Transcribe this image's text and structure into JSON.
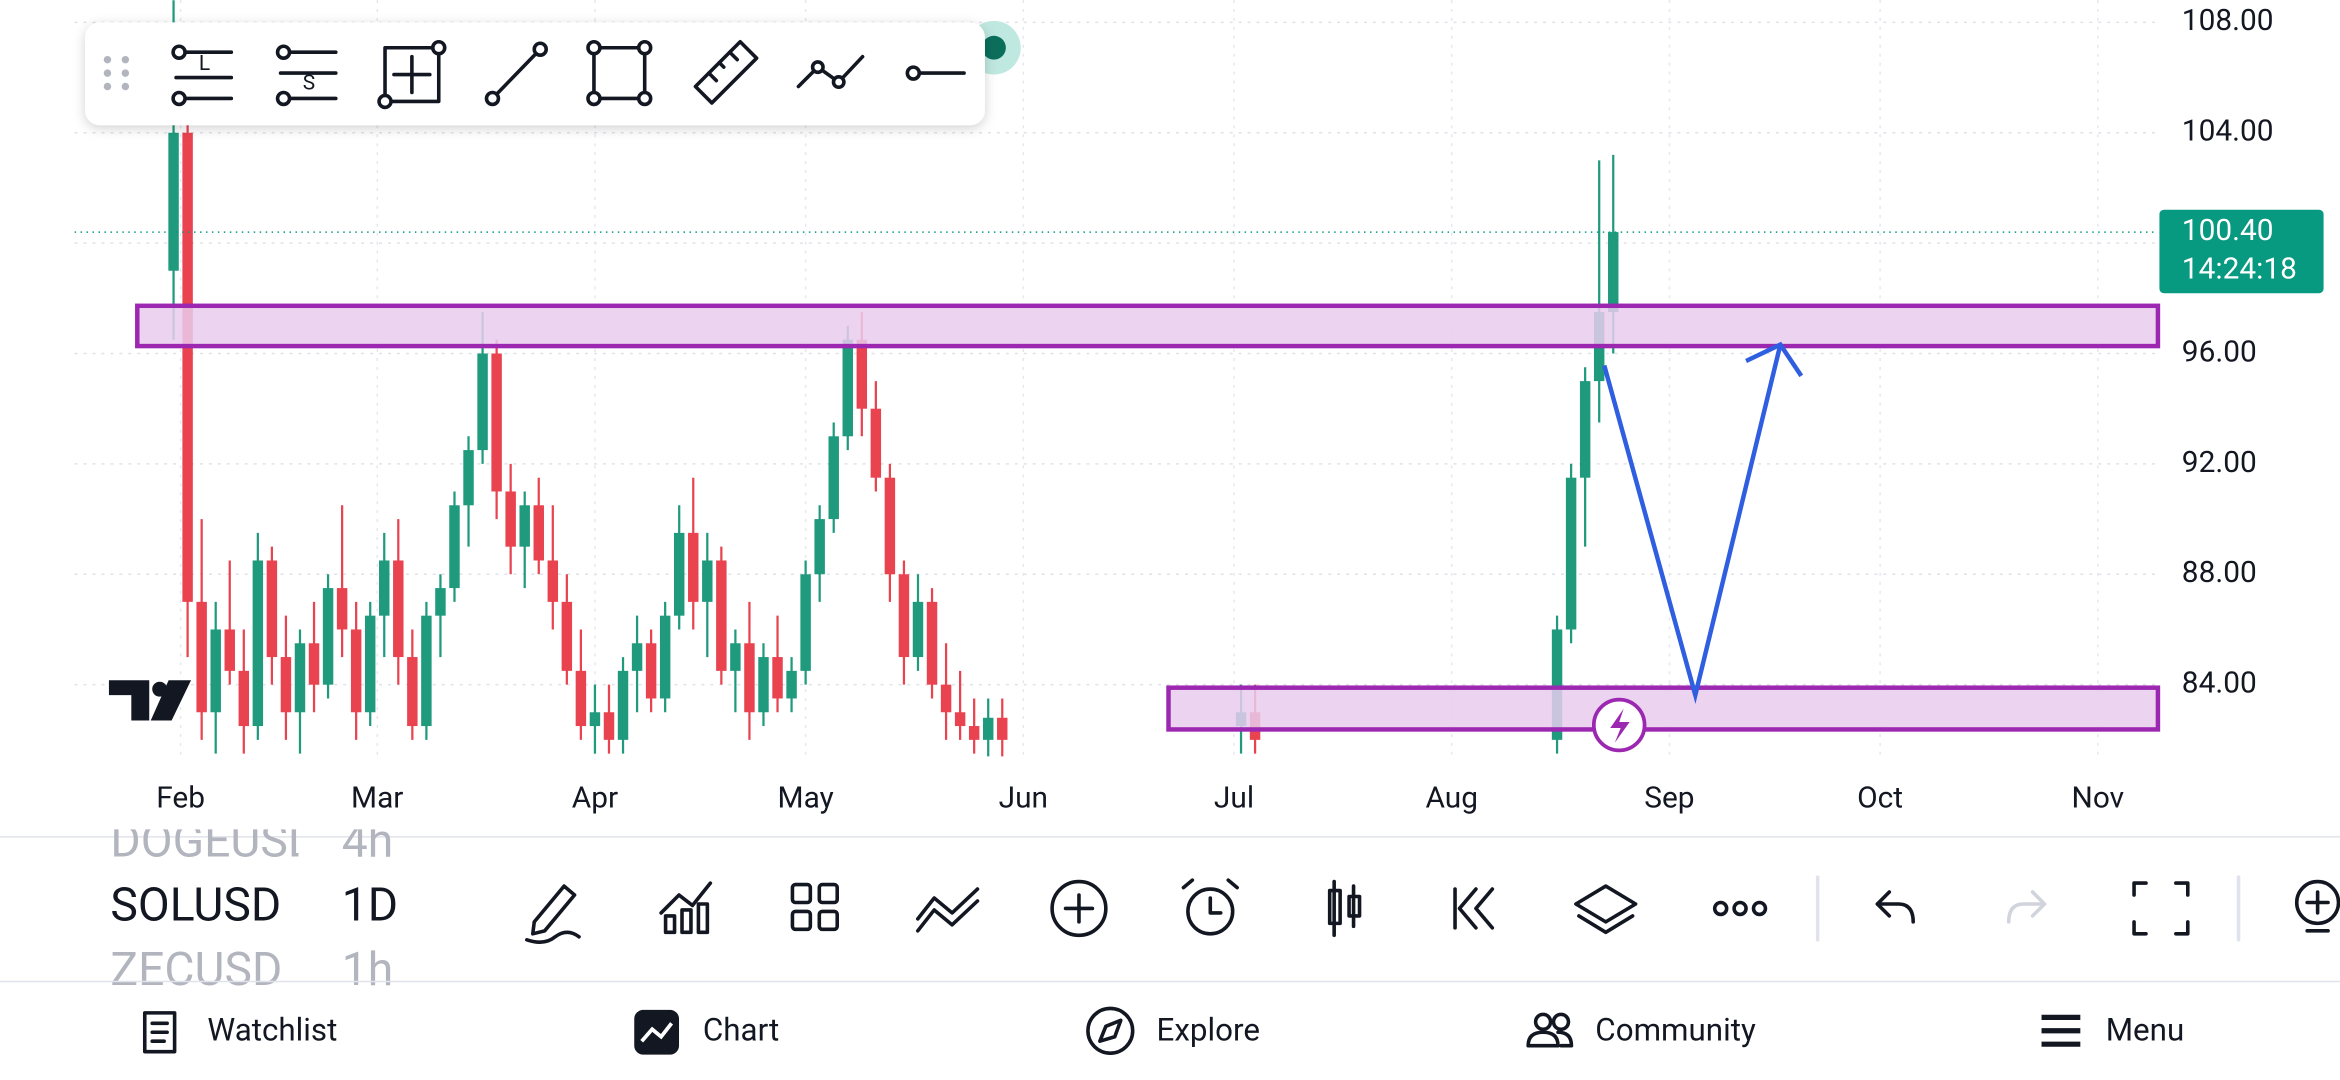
{
  "drawing_tool_labels": [
    "L",
    "S"
  ],
  "chart_data": {
    "type": "candlestick",
    "xticks": [
      {
        "value": 32,
        "label": "Feb"
      },
      {
        "value": 60,
        "label": "Mar"
      },
      {
        "value": 91,
        "label": "Apr"
      },
      {
        "value": 121,
        "label": "May"
      },
      {
        "value": 152,
        "label": "Jun"
      },
      {
        "value": 182,
        "label": "Jul"
      },
      {
        "value": 213,
        "label": "Aug"
      },
      {
        "value": 244,
        "label": "Sep"
      },
      {
        "value": 274,
        "label": "Oct"
      },
      {
        "value": 305,
        "label": "Nov"
      }
    ],
    "xlim": [
      16.91,
      313.56
    ],
    "ylim": [
      81.35,
      108.81
    ],
    "yticks": [
      {
        "value": 84,
        "label": "84.00"
      },
      {
        "value": 88,
        "label": "88.00"
      },
      {
        "value": 92,
        "label": "92.00"
      },
      {
        "value": 96,
        "label": "96.00"
      },
      {
        "value": 100,
        "label": "100.00"
      },
      {
        "value": 104,
        "label": "104.00"
      },
      {
        "value": 108,
        "label": "108.00"
      }
    ],
    "grid": true,
    "up_color": "#1f9a7d",
    "down_color": "#e8434f",
    "x": [
      31,
      33,
      35,
      37,
      39,
      41,
      43,
      45,
      47,
      49,
      51,
      53,
      55,
      57,
      59,
      61,
      63,
      65,
      67,
      69,
      71,
      73,
      75,
      77,
      79,
      81,
      83,
      85,
      87,
      89,
      91,
      93,
      95,
      97,
      99,
      101,
      103,
      105,
      107,
      109,
      111,
      113,
      115,
      117,
      119,
      121,
      123,
      125,
      127,
      129,
      131,
      133,
      135,
      137,
      139,
      141,
      143,
      145,
      147,
      149,
      183,
      185,
      228,
      230,
      232,
      234,
      236
    ],
    "ohlc": [
      [
        99,
        108.8,
        96.5,
        104
      ],
      [
        104,
        105,
        85,
        87
      ],
      [
        87,
        90,
        82,
        83
      ],
      [
        83,
        87,
        81.5,
        86
      ],
      [
        86,
        88.5,
        84,
        84.5
      ],
      [
        84.5,
        86,
        81.5,
        82.5
      ],
      [
        82.5,
        89.5,
        82,
        88.5
      ],
      [
        88.5,
        89,
        84,
        85
      ],
      [
        85,
        86.5,
        82,
        83
      ],
      [
        83,
        86,
        81.5,
        85.5
      ],
      [
        85.5,
        87,
        83,
        84
      ],
      [
        84,
        88,
        83.5,
        87.5
      ],
      [
        87.5,
        90.5,
        85,
        86
      ],
      [
        86,
        87,
        82,
        83
      ],
      [
        83,
        87,
        82.5,
        86.5
      ],
      [
        86.5,
        89.5,
        85,
        88.5
      ],
      [
        88.5,
        90,
        84,
        85
      ],
      [
        85,
        86,
        82,
        82.5
      ],
      [
        82.5,
        87,
        82,
        86.5
      ],
      [
        86.5,
        88,
        85,
        87.5
      ],
      [
        87.5,
        91,
        87,
        90.5
      ],
      [
        90.5,
        93,
        89,
        92.5
      ],
      [
        92.5,
        97.5,
        92,
        96
      ],
      [
        96,
        96.5,
        90,
        91
      ],
      [
        91,
        92,
        88,
        89
      ],
      [
        89,
        91,
        87.5,
        90.5
      ],
      [
        90.5,
        91.5,
        88,
        88.5
      ],
      [
        88.5,
        90.5,
        86,
        87
      ],
      [
        87,
        88,
        84,
        84.5
      ],
      [
        84.5,
        86,
        82,
        82.5
      ],
      [
        82.5,
        84,
        81.5,
        83
      ],
      [
        83,
        84,
        81.5,
        82
      ],
      [
        82,
        85,
        81.5,
        84.5
      ],
      [
        84.5,
        86.5,
        83,
        85.5
      ],
      [
        85.5,
        86,
        83,
        83.5
      ],
      [
        83.5,
        87,
        83,
        86.5
      ],
      [
        86.5,
        90.5,
        86,
        89.5
      ],
      [
        89.5,
        91.5,
        86,
        87
      ],
      [
        87,
        89.5,
        85,
        88.5
      ],
      [
        88.5,
        89,
        84,
        84.5
      ],
      [
        84.5,
        86,
        83,
        85.5
      ],
      [
        85.5,
        87,
        82,
        83
      ],
      [
        83,
        85.5,
        82.5,
        85
      ],
      [
        85,
        86.5,
        83,
        83.5
      ],
      [
        83.5,
        85,
        83,
        84.5
      ],
      [
        84.5,
        88.5,
        84,
        88
      ],
      [
        88,
        90.5,
        87,
        90
      ],
      [
        90,
        93.5,
        89.5,
        93
      ],
      [
        93,
        97,
        92.5,
        96.5
      ],
      [
        96.5,
        97.5,
        93,
        94
      ],
      [
        94,
        95,
        91,
        91.5
      ],
      [
        91.5,
        92,
        87,
        88
      ],
      [
        88,
        88.5,
        84,
        85
      ],
      [
        85,
        88,
        84.5,
        87
      ],
      [
        87,
        87.5,
        83.5,
        84
      ],
      [
        84,
        85.5,
        82,
        83
      ],
      [
        83,
        84.5,
        82,
        82.5
      ],
      [
        82.5,
        83.5,
        81.5,
        82
      ],
      [
        82,
        83.5,
        81.4,
        82.8
      ],
      [
        82.8,
        83.5,
        81.4,
        82
      ],
      [
        82.5,
        84,
        81.5,
        83
      ],
      [
        83,
        84,
        81.5,
        82
      ],
      [
        82,
        86.5,
        81.5,
        86
      ],
      [
        86,
        92,
        85.5,
        91.5
      ],
      [
        91.5,
        95.5,
        89,
        95
      ],
      [
        95,
        103,
        93.5,
        97.5
      ],
      [
        97.5,
        103.2,
        96,
        100.4
      ]
    ],
    "last_price": {
      "value": 100.4,
      "label": "100.40"
    },
    "countdown": "14:24:18"
  },
  "symbols": [
    {
      "symbol": "DOGEUSD",
      "interval": "4h"
    },
    {
      "symbol": "SOLUSD",
      "interval": "1D"
    },
    {
      "symbol": "ZECUSD",
      "interval": "1h"
    }
  ],
  "nav": [
    "Watchlist",
    "Chart",
    "Explore",
    "Community",
    "Menu"
  ]
}
